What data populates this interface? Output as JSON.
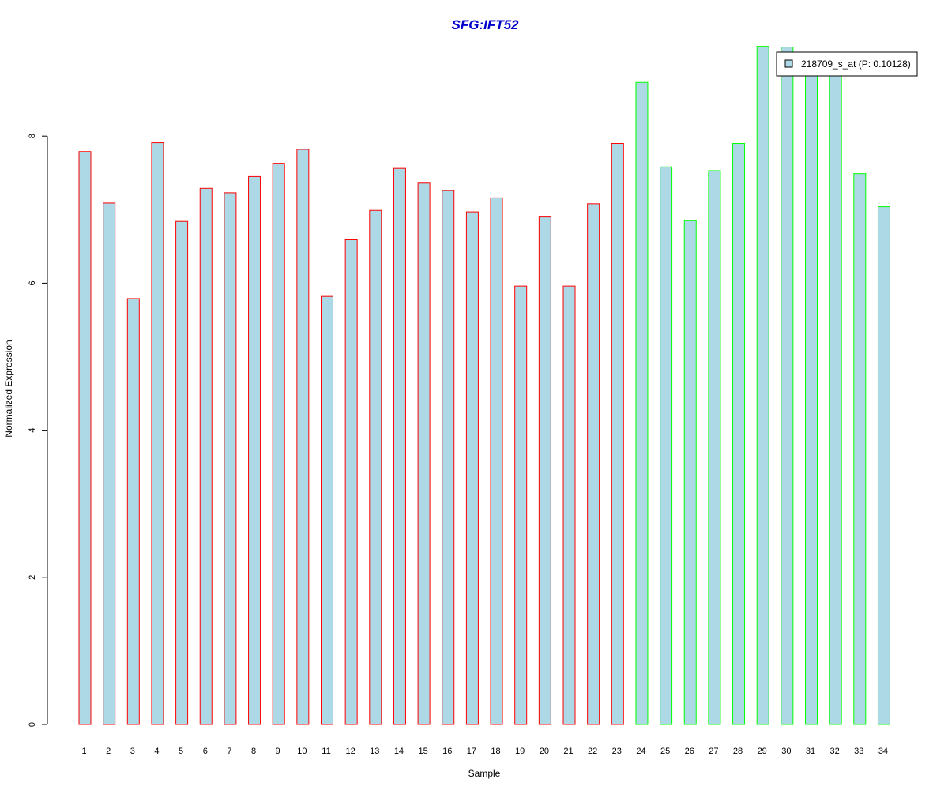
{
  "chart_data": {
    "type": "bar",
    "title": "SFG:IFT52",
    "xlabel": "Sample",
    "ylabel": "Normalized Expression",
    "ylim": [
      0,
      9.25
    ],
    "yticks": [
      0,
      2,
      4,
      6,
      8
    ],
    "grid": false,
    "legend_position": "top-right",
    "categories": [
      "1",
      "2",
      "3",
      "4",
      "5",
      "6",
      "7",
      "8",
      "9",
      "10",
      "11",
      "12",
      "13",
      "14",
      "15",
      "16",
      "17",
      "18",
      "19",
      "20",
      "21",
      "22",
      "23",
      "24",
      "25",
      "26",
      "27",
      "28",
      "29",
      "30",
      "31",
      "32",
      "33",
      "34"
    ],
    "series": [
      {
        "name": "218709_s_at (P: 0.10128)",
        "values": [
          7.79,
          7.09,
          5.79,
          7.91,
          6.84,
          7.29,
          7.23,
          7.45,
          7.63,
          7.82,
          5.82,
          6.59,
          6.99,
          7.56,
          7.36,
          7.26,
          6.97,
          7.16,
          5.96,
          6.9,
          5.96,
          7.08,
          7.9,
          8.73,
          7.58,
          6.85,
          7.53,
          7.9,
          9.22,
          9.21,
          8.93,
          8.91,
          7.49,
          7.04
        ],
        "fill": "#ADD8E6"
      }
    ],
    "group_borders": [
      "#FF0000",
      "#FF0000",
      "#FF0000",
      "#FF0000",
      "#FF0000",
      "#FF0000",
      "#FF0000",
      "#FF0000",
      "#FF0000",
      "#FF0000",
      "#FF0000",
      "#FF0000",
      "#FF0000",
      "#FF0000",
      "#FF0000",
      "#FF0000",
      "#FF0000",
      "#FF0000",
      "#FF0000",
      "#FF0000",
      "#FF0000",
      "#FF0000",
      "#FF0000",
      "#00FF00",
      "#00FF00",
      "#00FF00",
      "#00FF00",
      "#00FF00",
      "#00FF00",
      "#00FF00",
      "#00FF00",
      "#00FF00",
      "#00FF00",
      "#00FF00"
    ],
    "colors": {
      "title": "#0000CC",
      "bar_fill": "#ADD8E6",
      "axis": "#000000"
    }
  }
}
